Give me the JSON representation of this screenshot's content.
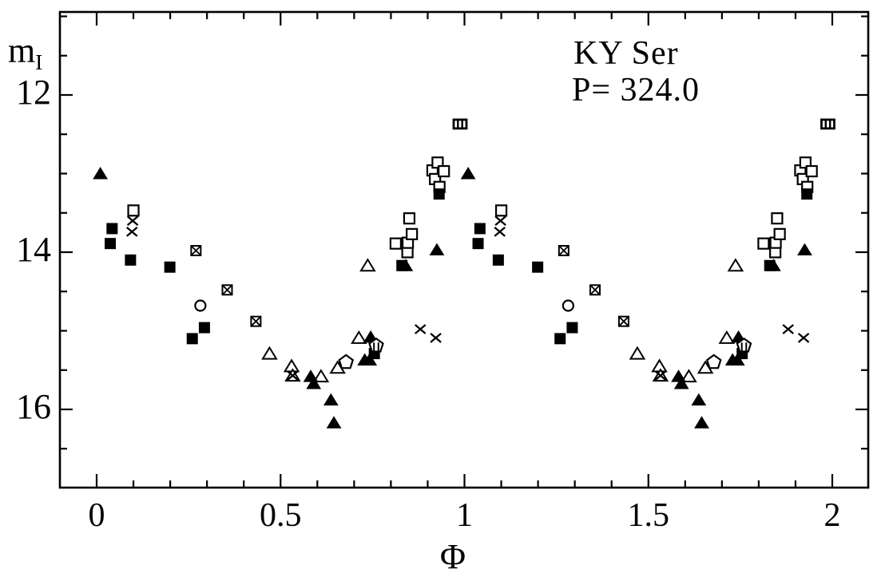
{
  "figure": {
    "title_line1": "KY Ser",
    "title_line2": "P= 324.0",
    "ylabel_main": "m",
    "ylabel_sub": "I",
    "xlabel": "Φ",
    "ink_color": "#000000",
    "background_color": "#ffffff"
  },
  "chart_data": {
    "type": "scatter",
    "title": "KY Ser",
    "subtitle": "P= 324.0",
    "xlabel": "Φ",
    "ylabel": "m_I",
    "x_axis": {
      "min": -0.1,
      "max": 2.1,
      "major_ticks": [
        0,
        0.5,
        1,
        1.5,
        2
      ],
      "tick_labels": [
        "0",
        "0.5",
        "1",
        "1.5",
        "2"
      ],
      "minor_step": 0.1
    },
    "y_axis": {
      "min_mag": 10.95,
      "max_mag": 17.0,
      "inverted": true,
      "major_ticks": [
        12,
        14,
        16
      ],
      "tick_labels": [
        "12",
        "14",
        "16"
      ],
      "minor_step": 0.5
    },
    "grid": false,
    "legend": "none",
    "phase_duplication": "every point is plotted at phase and phase+1",
    "series": [
      {
        "name": "open-square",
        "marker": "open square",
        "points": [
          [
            0.1,
            13.47
          ],
          [
            0.813,
            13.89
          ],
          [
            0.845,
            14.0
          ],
          [
            0.846,
            13.88
          ],
          [
            0.85,
            13.57
          ],
          [
            0.857,
            13.77
          ],
          [
            0.913,
            12.96
          ],
          [
            0.92,
            13.07
          ],
          [
            0.927,
            12.86
          ],
          [
            0.932,
            13.17
          ],
          [
            0.944,
            12.97
          ]
        ]
      },
      {
        "name": "open-circle",
        "marker": "open circle",
        "points": [
          [
            0.282,
            14.68
          ]
        ]
      },
      {
        "name": "crossed-square",
        "marker": "open square with diagonal cross",
        "points": [
          [
            0.27,
            13.98
          ],
          [
            0.355,
            14.48
          ],
          [
            0.433,
            14.88
          ]
        ]
      },
      {
        "name": "filled-square",
        "marker": "filled square",
        "points": [
          [
            0.037,
            13.89
          ],
          [
            0.042,
            13.7
          ],
          [
            0.092,
            14.1
          ],
          [
            0.199,
            14.19
          ],
          [
            0.26,
            15.1
          ],
          [
            0.293,
            14.96
          ],
          [
            0.755,
            15.29
          ],
          [
            0.83,
            14.17
          ],
          [
            0.931,
            13.26
          ]
        ]
      },
      {
        "name": "open-triangle",
        "marker": "open triangle",
        "points": [
          [
            0.47,
            15.29
          ],
          [
            0.53,
            15.45
          ],
          [
            0.533,
            15.57
          ],
          [
            0.61,
            15.58
          ],
          [
            0.655,
            15.47
          ],
          [
            0.713,
            15.09
          ],
          [
            0.737,
            14.17
          ]
        ]
      },
      {
        "name": "filled-triangle",
        "marker": "filled triangle",
        "points": [
          [
            0.01,
            13.0
          ],
          [
            0.582,
            15.58
          ],
          [
            0.59,
            15.67
          ],
          [
            0.637,
            15.88
          ],
          [
            0.645,
            16.17
          ],
          [
            0.729,
            15.37
          ],
          [
            0.742,
            15.37
          ],
          [
            0.745,
            15.08
          ],
          [
            0.84,
            14.17
          ],
          [
            0.925,
            13.97
          ]
        ]
      },
      {
        "name": "open-pentagon",
        "marker": "open pentagon",
        "points": [
          [
            0.678,
            15.4
          ]
        ]
      },
      {
        "name": "striped-pentagon",
        "marker": "open pentagon with vertical stripes",
        "points": [
          [
            0.76,
            15.19
          ]
        ]
      },
      {
        "name": "cross",
        "marker": "diagonal cross x",
        "points": [
          [
            0.096,
            13.74
          ],
          [
            0.098,
            13.6
          ],
          [
            0.533,
            15.57
          ],
          [
            0.88,
            14.98
          ],
          [
            0.922,
            15.09
          ]
        ]
      },
      {
        "name": "striped-multisquare",
        "marker": "overlapping open squares (striped box)",
        "points": [
          [
            0.988,
            12.37
          ]
        ]
      }
    ]
  }
}
